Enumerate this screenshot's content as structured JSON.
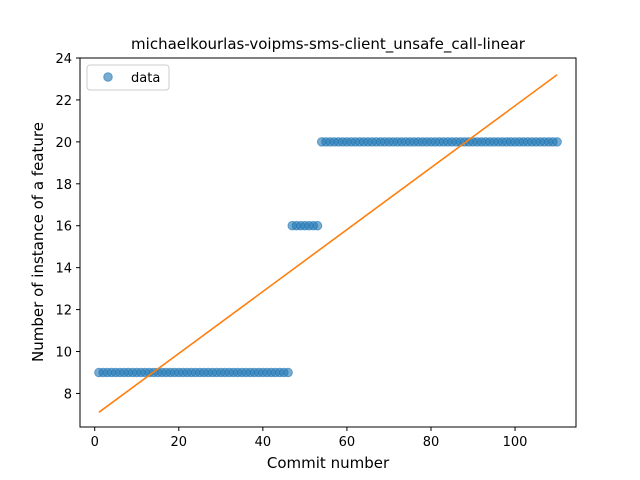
{
  "chart_data": {
    "type": "scatter",
    "title": "michaelkourlas-voipms-sms-client_unsafe_call-linear",
    "xlabel": "Commit number",
    "ylabel": "Number of instance of a feature",
    "xlim": [
      -3.5,
      114.5
    ],
    "ylim": [
      6.4,
      24.0
    ],
    "xticks": [
      0,
      20,
      40,
      60,
      80,
      100
    ],
    "yticks": [
      8,
      10,
      12,
      14,
      16,
      18,
      20,
      22,
      24
    ],
    "grid": false,
    "legend": {
      "position": "top-left",
      "entries": [
        "data"
      ]
    },
    "series": [
      {
        "name": "data",
        "kind": "scatter",
        "color": "#1f77b4",
        "segments": [
          {
            "x_from": 1,
            "x_to": 46,
            "y": 9
          },
          {
            "x_from": 47,
            "x_to": 53,
            "y": 16
          },
          {
            "x_from": 54,
            "x_to": 110,
            "y": 20
          }
        ]
      },
      {
        "kind": "line",
        "color": "#ff7f0e",
        "x": [
          1,
          110
        ],
        "y": [
          7.1,
          23.2
        ]
      }
    ]
  }
}
